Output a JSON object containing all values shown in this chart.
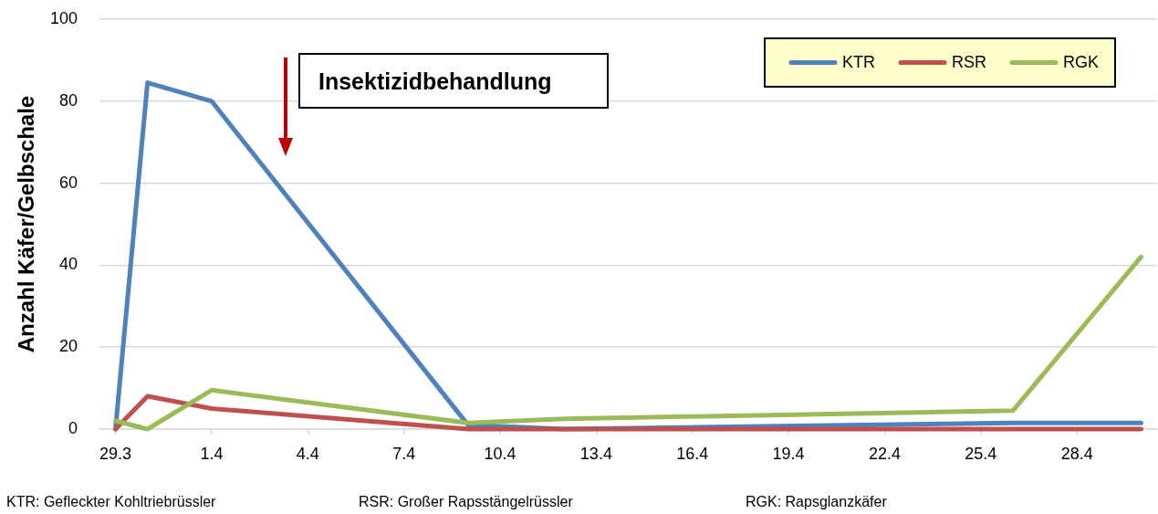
{
  "chart_data": {
    "type": "line",
    "x": [
      "--03-29",
      "--03-30",
      "--04-01",
      "--04-09",
      "--04-12",
      "--04-26",
      "--04-30"
    ],
    "series": [
      {
        "name": "KTR",
        "color": "#4f81bd",
        "values": [
          0,
          84.5,
          80,
          1,
          0,
          1.5,
          1.5
        ]
      },
      {
        "name": "RSR",
        "color": "#c0504d",
        "values": [
          0,
          8,
          5,
          0,
          0,
          0,
          0
        ]
      },
      {
        "name": "RGK",
        "color": "#9bbb59",
        "values": [
          2,
          0,
          9.5,
          1.5,
          2.5,
          4.5,
          42
        ]
      }
    ],
    "ylabel": "Anzahl Käfer/Gelbschale",
    "ylim": [
      0,
      100
    ],
    "yticks": [
      0,
      20,
      40,
      60,
      80,
      100
    ],
    "xlim": [
      "--03-28T12:00",
      "--04-30T12:00"
    ],
    "xticks": [
      {
        "value": "--03-29",
        "label": "29.3"
      },
      {
        "value": "--04-01",
        "label": "1.4"
      },
      {
        "value": "--04-04",
        "label": "4.4"
      },
      {
        "value": "--04-07",
        "label": "7.4"
      },
      {
        "value": "--04-10",
        "label": "10.4"
      },
      {
        "value": "--04-13",
        "label": "13.4"
      },
      {
        "value": "--04-16",
        "label": "16.4"
      },
      {
        "value": "--04-19",
        "label": "19.4"
      },
      {
        "value": "--04-22",
        "label": "22.4"
      },
      {
        "value": "--04-25",
        "label": "25.4"
      },
      {
        "value": "--04-28",
        "label": "28.4"
      }
    ],
    "grid": "y",
    "legend": "top right",
    "marker": "none",
    "line_style": "solid",
    "annotations": [
      "Insektizidbehandlung",
      "KTR: Gefleckter Kohltriebrüssler",
      "RSR: Großer Rapsstängelrüssler",
      "RGK: Rapsglanzkäfer"
    ]
  }
}
